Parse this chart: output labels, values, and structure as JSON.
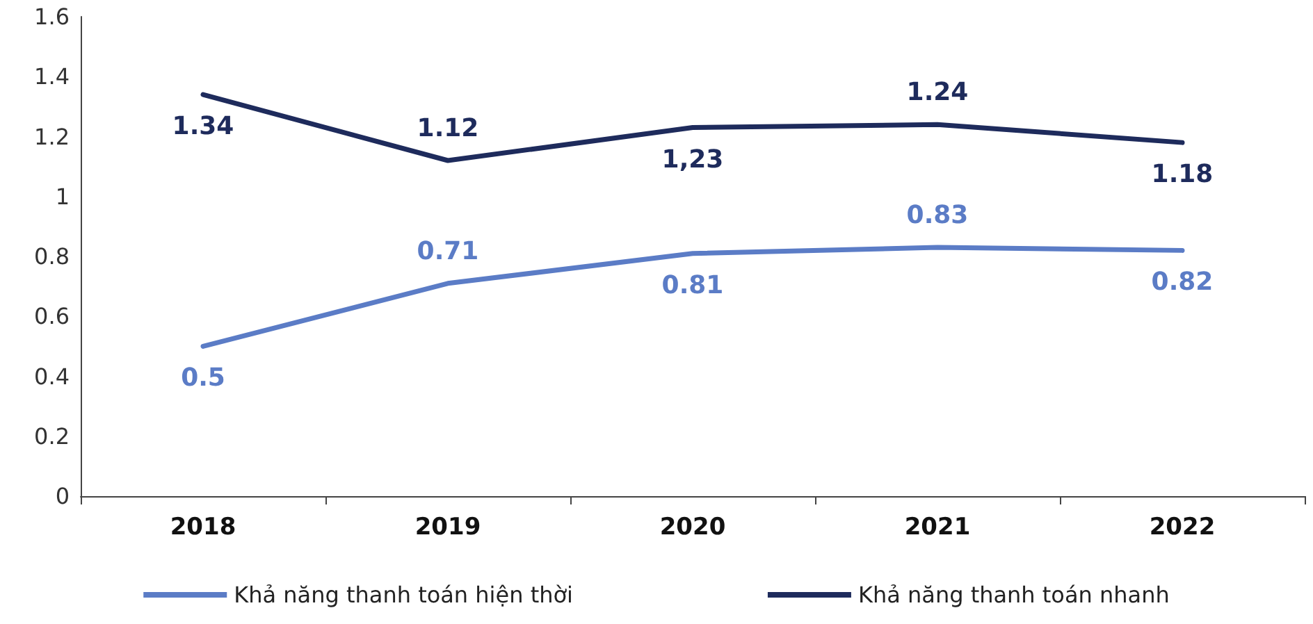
{
  "chart_data": {
    "type": "line",
    "categories": [
      "2018",
      "2019",
      "2020",
      "2021",
      "2022"
    ],
    "series": [
      {
        "name": "Khả năng thanh toán hiện thời",
        "color": "#5b7cc6",
        "values": [
          0.5,
          0.71,
          0.81,
          0.83,
          0.82
        ],
        "value_labels": [
          "0.5",
          "0.71",
          "0.81",
          "0.83",
          "0.82"
        ]
      },
      {
        "name": "Khả năng thanh toán nhanh",
        "color": "#1e2b5c",
        "values": [
          1.34,
          1.12,
          1.23,
          1.24,
          1.18
        ],
        "value_labels": [
          "1.34",
          "1.12",
          "1,23",
          "1.24",
          "1.18"
        ]
      }
    ],
    "ylim": [
      0,
      1.6
    ],
    "yticks": [
      0,
      0.2,
      0.4,
      0.6,
      0.8,
      1,
      1.2,
      1.4,
      1.6
    ],
    "grid": false,
    "legend": "bottom",
    "marker": "none",
    "line_style": "solid"
  }
}
